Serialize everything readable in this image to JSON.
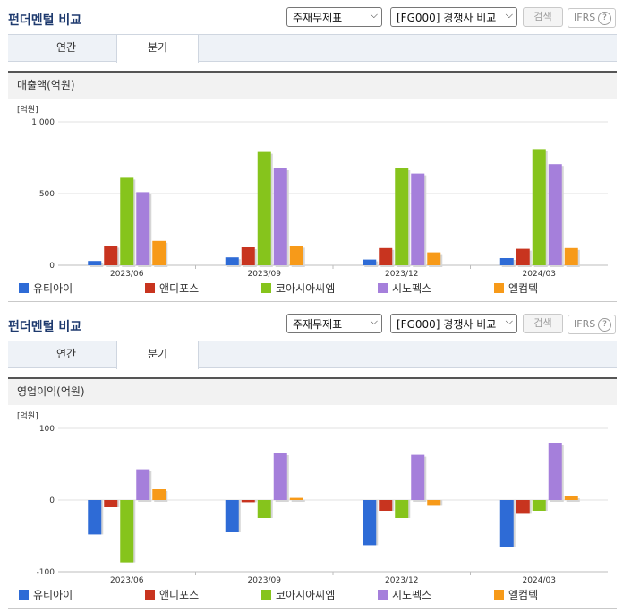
{
  "panels": [
    {
      "title": "펀더멘털 비교",
      "select1": "주재무제표",
      "select2": "[FG000] 경쟁사 비교",
      "search_button": "검색",
      "ifrs": "IFRS",
      "ifrs_help": "?",
      "tabs": [
        "연간",
        "분기"
      ],
      "active_tab": "분기",
      "section_title": "매출액(억원)",
      "unit_label": "[억원]"
    },
    {
      "title": "펀더멘털 비교",
      "select1": "주재무제표",
      "select2": "[FG000] 경쟁사 비교",
      "search_button": "검색",
      "ifrs": "IFRS",
      "ifrs_help": "?",
      "tabs": [
        "연간",
        "분기"
      ],
      "active_tab": "분기",
      "section_title": "영업이익(억원)",
      "unit_label": "[억원]"
    }
  ],
  "chart_data": [
    {
      "type": "bar",
      "title": "매출액(억원)",
      "ylabel": "[억원]",
      "categories": [
        "2023/06",
        "2023/09",
        "2023/12",
        "2024/03"
      ],
      "ylim": [
        0,
        1000
      ],
      "yticks": [
        "0",
        "500",
        "1,000"
      ],
      "ytick_values": [
        0,
        500,
        1000
      ],
      "legend_position": "bottom",
      "grid": true,
      "series": [
        {
          "name": "유티아이",
          "color": "#2e6bd6",
          "values": [
            30,
            55,
            40,
            50
          ]
        },
        {
          "name": "앤디포스",
          "color": "#c8341f",
          "values": [
            135,
            125,
            120,
            115
          ]
        },
        {
          "name": "코아시아씨엠",
          "color": "#86c41c",
          "values": [
            610,
            790,
            675,
            810
          ]
        },
        {
          "name": "시노펙스",
          "color": "#a57fdb",
          "values": [
            510,
            675,
            640,
            705
          ]
        },
        {
          "name": "엘컴텍",
          "color": "#f79a19",
          "values": [
            170,
            135,
            90,
            120
          ]
        }
      ]
    },
    {
      "type": "bar",
      "title": "영업이익(억원)",
      "ylabel": "[억원]",
      "categories": [
        "2023/06",
        "2023/09",
        "2023/12",
        "2024/03"
      ],
      "ylim": [
        -100,
        100
      ],
      "yticks": [
        "-100",
        "0",
        "100"
      ],
      "ytick_values": [
        -100,
        0,
        100
      ],
      "legend_position": "bottom",
      "grid": true,
      "series": [
        {
          "name": "유티아이",
          "color": "#2e6bd6",
          "values": [
            -48,
            -45,
            -63,
            -65
          ]
        },
        {
          "name": "앤디포스",
          "color": "#c8341f",
          "values": [
            -10,
            -3,
            -15,
            -18
          ]
        },
        {
          "name": "코아시아씨엠",
          "color": "#86c41c",
          "values": [
            -87,
            -25,
            -25,
            -15
          ]
        },
        {
          "name": "시노펙스",
          "color": "#a57fdb",
          "values": [
            43,
            65,
            63,
            80
          ]
        },
        {
          "name": "엘컴텍",
          "color": "#f79a19",
          "values": [
            15,
            3,
            -8,
            5
          ]
        }
      ]
    }
  ]
}
